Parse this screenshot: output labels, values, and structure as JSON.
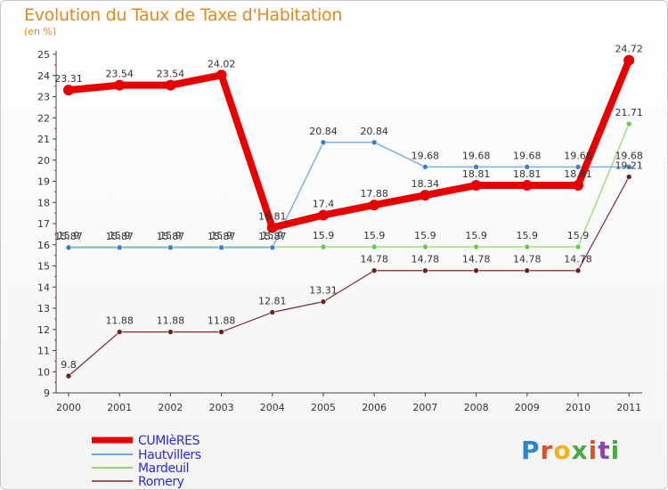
{
  "title": "Evolution du Taux de Taxe d'Habitation",
  "unit_label": "(en %)",
  "logo_text": "Proxiti",
  "chart_data": {
    "type": "line",
    "x": [
      "2000",
      "2001",
      "2002",
      "2003",
      "2004",
      "2005",
      "2006",
      "2007",
      "2008",
      "2009",
      "2010",
      "2011"
    ],
    "ylim": [
      9,
      25
    ],
    "yticks": [
      9,
      10,
      11,
      12,
      13,
      14,
      15,
      16,
      17,
      18,
      19,
      20,
      21,
      22,
      23,
      24,
      25
    ],
    "grid": false,
    "legend_position": "bottom-left",
    "series": [
      {
        "name": "CUMIèRES",
        "color": "#e60000",
        "values": [
          23.31,
          23.54,
          23.54,
          24.02,
          16.81,
          17.4,
          17.88,
          18.34,
          18.81,
          18.81,
          18.81,
          24.72
        ],
        "labels": [
          "23.31",
          "23.54",
          "23.54",
          "24.02",
          "16.81",
          "17.4",
          "17.88",
          "18.34",
          "18.81",
          "18.81",
          "18.81",
          "24.72"
        ]
      },
      {
        "name": "Hautvillers",
        "color": "#6fa8d8",
        "values": [
          15.87,
          15.87,
          15.87,
          15.87,
          15.87,
          20.84,
          20.84,
          19.68,
          19.68,
          19.68,
          19.68,
          19.68
        ],
        "labels": [
          "15.87",
          "15.87",
          "15.87",
          "15.87",
          "15.87",
          "20.84",
          "20.84",
          "19.68",
          "19.68",
          "19.68",
          "19.68",
          "19.68"
        ]
      },
      {
        "name": "Mardeuil",
        "color": "#8fd86a",
        "values": [
          15.9,
          15.9,
          15.9,
          15.9,
          15.9,
          15.9,
          15.9,
          15.9,
          15.9,
          15.9,
          15.9,
          21.71
        ],
        "labels": [
          "15.9",
          "15.9",
          "15.9",
          "15.9",
          "15.9",
          "15.9",
          "15.9",
          "15.9",
          "15.9",
          "15.9",
          "15.9",
          "21.71"
        ]
      },
      {
        "name": "Romery",
        "color": "#7a2c2c",
        "values": [
          9.8,
          11.88,
          11.88,
          11.88,
          12.81,
          13.31,
          14.78,
          14.78,
          14.78,
          14.78,
          14.78,
          19.21
        ],
        "labels": [
          "9.8",
          "11.88",
          "11.88",
          "11.88",
          "12.81",
          "13.31",
          "14.78",
          "14.78",
          "14.78",
          "14.78",
          "14.78",
          "19.21"
        ]
      }
    ]
  }
}
